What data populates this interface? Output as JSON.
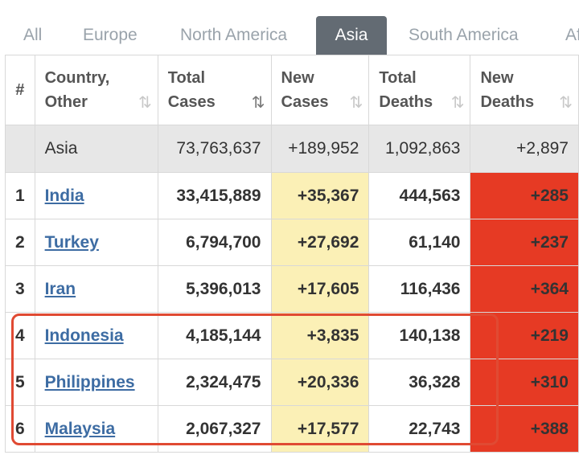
{
  "tabs": [
    {
      "label": "All"
    },
    {
      "label": "Europe"
    },
    {
      "label": "North America"
    },
    {
      "label": "Asia"
    },
    {
      "label": "South America"
    },
    {
      "label": "Af"
    }
  ],
  "table": {
    "headers": {
      "num": "#",
      "country": [
        "Country,",
        "Other"
      ],
      "total_cases": [
        "Total",
        "Cases"
      ],
      "new_cases": [
        "New",
        "Cases"
      ],
      "total_deaths": [
        "Total",
        "Deaths"
      ],
      "new_deaths": [
        "New",
        "Deaths"
      ]
    },
    "sort_icon": "⇅",
    "total_row": {
      "country": "Asia",
      "total_cases": "73,763,637",
      "new_cases": "+189,952",
      "total_deaths": "1,092,863",
      "new_deaths": "+2,897"
    },
    "rows": [
      {
        "num": "1",
        "country": "India",
        "total_cases": "33,415,889",
        "new_cases": "+35,367",
        "total_deaths": "444,563",
        "new_deaths": "+285"
      },
      {
        "num": "2",
        "country": "Turkey",
        "total_cases": "6,794,700",
        "new_cases": "+27,692",
        "total_deaths": "61,140",
        "new_deaths": "+237"
      },
      {
        "num": "3",
        "country": "Iran",
        "total_cases": "5,396,013",
        "new_cases": "+17,605",
        "total_deaths": "116,436",
        "new_deaths": "+364"
      },
      {
        "num": "4",
        "country": "Indonesia",
        "total_cases": "4,185,144",
        "new_cases": "+3,835",
        "total_deaths": "140,138",
        "new_deaths": "+219"
      },
      {
        "num": "5",
        "country": "Philippines",
        "total_cases": "2,324,475",
        "new_cases": "+20,336",
        "total_deaths": "36,328",
        "new_deaths": "+310"
      },
      {
        "num": "6",
        "country": "Malaysia",
        "total_cases": "2,067,327",
        "new_cases": "+17,577",
        "total_deaths": "22,743",
        "new_deaths": "+388"
      }
    ]
  },
  "colors": {
    "active_tab": "#636b73",
    "new_cases_bg": "#fbf0b6",
    "new_deaths_bg": "#e63a24",
    "link": "#3d6ca3",
    "highlight_border": "#e04a33"
  }
}
